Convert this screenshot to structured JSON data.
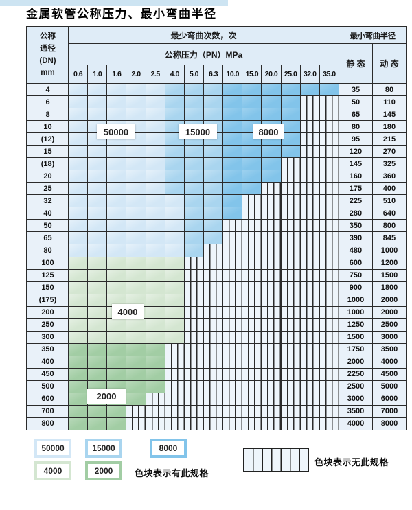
{
  "page": {
    "title": "金属软管公称压力、最小弯曲半径"
  },
  "colors": {
    "light_blue": "#d3e7f6",
    "mid_blue": "#a9d5ef",
    "dark_blue": "#82c4ea",
    "light_green": "#d4e6d1",
    "dark_green": "#a2cda4",
    "hatch_bg": "#eef5fb",
    "header_bg": "#dfecf7",
    "label_col_bg": "#e9f1f9",
    "border": "#2b2b2b"
  },
  "table": {
    "corner": [
      "公称",
      "通径",
      "(DN)",
      "mm"
    ],
    "cycles_header": "最少弯曲次数，次",
    "pressure_header": "公称压力（PN）MPa",
    "radius_header": "最小弯曲半径",
    "static_label": "静 态",
    "dynamic_label": "动 态",
    "pressure_columns": [
      "0.6",
      "1.0",
      "1.6",
      "2.0",
      "2.5",
      "4.0",
      "5.0",
      "6.3",
      "10.0",
      "15.0",
      "20.0",
      "25.0",
      "32.0",
      "35.0"
    ],
    "cell_codes": {
      "L": "50000",
      "M": "15000",
      "D": "8000",
      "g": "4000",
      "G": "2000",
      "H": "no-spec"
    },
    "rows": [
      {
        "dn": "4",
        "cells": "LLLLLMMMDDDDDD",
        "static": "35",
        "dynamic": "80"
      },
      {
        "dn": "6",
        "cells": "LLLLLMMMDDDDHH",
        "static": "50",
        "dynamic": "110"
      },
      {
        "dn": "8",
        "cells": "LLLLLMMMDDDDHH",
        "static": "65",
        "dynamic": "145"
      },
      {
        "dn": "10",
        "cells": "LLLLLMMMDDDDHH",
        "static": "80",
        "dynamic": "180"
      },
      {
        "dn": "(12)",
        "cells": "LLLLLMMMDDDDHH",
        "static": "95",
        "dynamic": "215"
      },
      {
        "dn": "15",
        "cells": "LLLLLMMMDDDDHH",
        "static": "120",
        "dynamic": "270"
      },
      {
        "dn": "(18)",
        "cells": "LLLLLMMMDDDHHH",
        "static": "145",
        "dynamic": "325"
      },
      {
        "dn": "20",
        "cells": "LLLLLMMMDDDHHH",
        "static": "160",
        "dynamic": "360"
      },
      {
        "dn": "25",
        "cells": "LLLLLMMMDDHHHH",
        "static": "175",
        "dynamic": "400"
      },
      {
        "dn": "32",
        "cells": "LLLLLLMMDHHHHH",
        "static": "225",
        "dynamic": "510"
      },
      {
        "dn": "40",
        "cells": "LLLLLLMMDHHHHH",
        "static": "280",
        "dynamic": "640"
      },
      {
        "dn": "50",
        "cells": "LLLLLLMMHHHHHH",
        "static": "350",
        "dynamic": "800"
      },
      {
        "dn": "65",
        "cells": "LLLLLLMMHHHHHH",
        "static": "390",
        "dynamic": "845"
      },
      {
        "dn": "80",
        "cells": "LLLLLLMHHHHHHH",
        "static": "480",
        "dynamic": "1000"
      },
      {
        "dn": "100",
        "cells": "ggggggHHHHHHHH",
        "static": "600",
        "dynamic": "1200"
      },
      {
        "dn": "125",
        "cells": "ggggggHHHHHHHH",
        "static": "750",
        "dynamic": "1500"
      },
      {
        "dn": "150",
        "cells": "ggggggHHHHHHHH",
        "static": "900",
        "dynamic": "1800"
      },
      {
        "dn": "(175)",
        "cells": "ggggggHHHHHHHH",
        "static": "1000",
        "dynamic": "2000"
      },
      {
        "dn": "200",
        "cells": "ggggggHHHHHHHH",
        "static": "1000",
        "dynamic": "2000"
      },
      {
        "dn": "250",
        "cells": "ggggggHHHHHHHH",
        "static": "1250",
        "dynamic": "2500"
      },
      {
        "dn": "300",
        "cells": "ggggggHHHHHHHH",
        "static": "1500",
        "dynamic": "3000"
      },
      {
        "dn": "350",
        "cells": "GGGGGHHHHHHHHH",
        "static": "1750",
        "dynamic": "3500"
      },
      {
        "dn": "400",
        "cells": "GGGGGHHHHHHHHH",
        "static": "2000",
        "dynamic": "4000"
      },
      {
        "dn": "450",
        "cells": "GGGGGHHHHHHHHH",
        "static": "2250",
        "dynamic": "4500"
      },
      {
        "dn": "500",
        "cells": "GGGGGHHHHHHHHH",
        "static": "2500",
        "dynamic": "5000"
      },
      {
        "dn": "600",
        "cells": "GGGGHHHHHHHHHH",
        "static": "3000",
        "dynamic": "6000"
      },
      {
        "dn": "700",
        "cells": "GGGHHHHHHHHHHH",
        "static": "3500",
        "dynamic": "7000"
      },
      {
        "dn": "800",
        "cells": "GGGHHHHHHHHHHH",
        "static": "4000",
        "dynamic": "8000"
      }
    ],
    "overlay_labels": [
      {
        "text": "50000"
      },
      {
        "text": "15000"
      },
      {
        "text": "8000"
      },
      {
        "text": "4000"
      },
      {
        "text": "2000"
      }
    ]
  },
  "legend": {
    "swatches": [
      {
        "label": "50000"
      },
      {
        "label": "15000"
      },
      {
        "label": "8000"
      },
      {
        "label": "4000"
      },
      {
        "label": "2000"
      }
    ],
    "has_spec_note": "色块表示有此规格",
    "no_spec_note": "色块表示无此规格"
  }
}
